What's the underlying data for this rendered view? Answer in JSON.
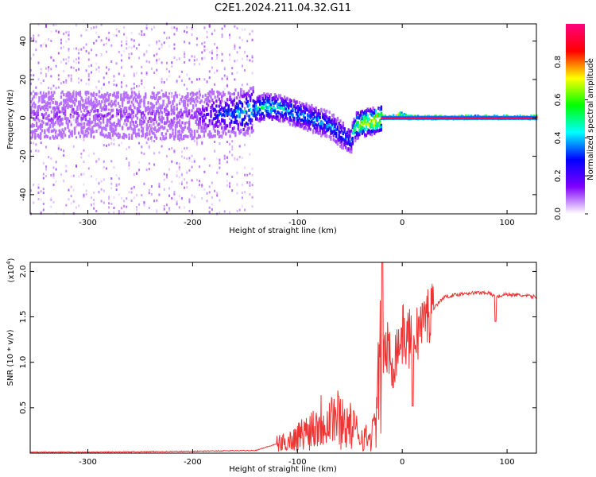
{
  "title": "C2E1.2024.211.04.32.G11",
  "chart_data": [
    {
      "type": "heatmap",
      "xlabel": "Height of straight line (km)",
      "ylabel": "Frequency (Hz)",
      "xlim": [
        -355,
        128
      ],
      "ylim": [
        -50,
        49
      ],
      "x_ticks": [
        -300,
        -200,
        -100,
        0,
        100
      ],
      "y_ticks": [
        -40,
        -20,
        0,
        20,
        40
      ],
      "colorbar": {
        "label": "Normalized spectral amplitude",
        "range": [
          0,
          1
        ],
        "ticks": [
          0.0,
          0.2,
          0.4,
          0.6,
          0.8
        ],
        "colors": [
          "#ffffff",
          "#7f00ff",
          "#0000ff",
          "#00ffff",
          "#00ff00",
          "#ffff00",
          "#ff0000",
          "#ff0080"
        ]
      },
      "ridge": {
        "x": [
          -355,
          -300,
          -250,
          -200,
          -150,
          -130,
          -110,
          -95,
          -80,
          -70,
          -60,
          -50,
          -45,
          -40,
          -30,
          -20,
          -10,
          -3,
          5,
          20,
          50,
          80,
          128
        ],
        "y": [
          1,
          2,
          1,
          1,
          3,
          6,
          4,
          1,
          -2,
          -4,
          -8,
          -12,
          -4,
          -3,
          -2,
          0,
          0,
          2,
          0,
          0,
          0,
          0,
          0
        ],
        "amplitude": [
          0.12,
          0.12,
          0.12,
          0.12,
          0.45,
          0.5,
          0.45,
          0.4,
          0.4,
          0.4,
          0.4,
          0.35,
          0.6,
          0.7,
          0.8,
          0.92,
          0.92,
          0.85,
          0.95,
          0.95,
          0.95,
          0.95,
          0.95
        ]
      },
      "noise_floor_end_x": -143
    },
    {
      "type": "line",
      "xlabel": "Height of straight line (km)",
      "ylabel": "SNR (10 * v/v)",
      "y_multiplier": "(x10^4)",
      "xlim": [
        -355,
        128
      ],
      "ylim": [
        0,
        2.1
      ],
      "x_ticks": [
        -300,
        -200,
        -100,
        0,
        100
      ],
      "y_ticks": [
        0.5,
        1.0,
        1.5,
        2.0
      ],
      "series": [
        {
          "color": "#ee3333",
          "x": [
            -355,
            -300,
            -200,
            -140,
            -120,
            -110,
            -100,
            -90,
            -80,
            -70,
            -60,
            -50,
            -40,
            -30,
            -25,
            -20,
            -15,
            -10,
            -5,
            0,
            10,
            20,
            30,
            40,
            60,
            80,
            90,
            100,
            128
          ],
          "y": [
            0.01,
            0.01,
            0.02,
            0.03,
            0.1,
            0.12,
            0.18,
            0.25,
            0.35,
            0.42,
            0.38,
            0.3,
            0.2,
            0.15,
            0.35,
            1.1,
            1.15,
            1.0,
            1.15,
            1.3,
            1.25,
            1.45,
            1.6,
            1.72,
            1.76,
            1.77,
            1.72,
            1.75,
            1.72
          ]
        }
      ]
    }
  ]
}
